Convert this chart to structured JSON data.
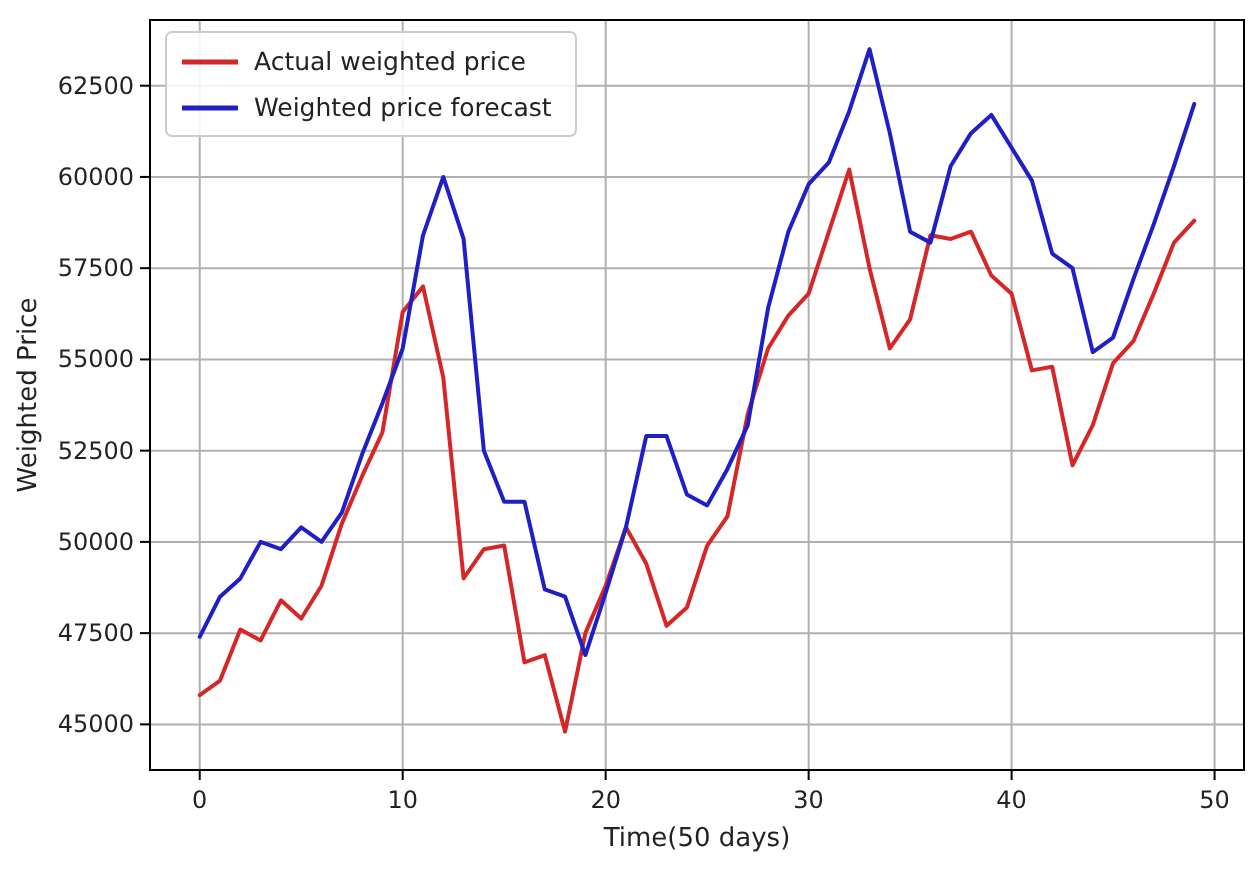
{
  "chart_data": {
    "type": "line",
    "xlabel": "Time(50 days)",
    "ylabel": "Weighted Price",
    "x": [
      0,
      1,
      2,
      3,
      4,
      5,
      6,
      7,
      8,
      9,
      10,
      11,
      12,
      13,
      14,
      15,
      16,
      17,
      18,
      19,
      20,
      21,
      22,
      23,
      24,
      25,
      26,
      27,
      28,
      29,
      30,
      31,
      32,
      33,
      34,
      35,
      36,
      37,
      38,
      39,
      40,
      41,
      42,
      43,
      44,
      45,
      46,
      47,
      48,
      49
    ],
    "series": [
      {
        "name": "Actual weighted price",
        "color": "#d62728",
        "values": [
          45800,
          46200,
          47600,
          47300,
          48400,
          47900,
          48800,
          50500,
          51800,
          53000,
          56300,
          57000,
          54500,
          49000,
          49800,
          49900,
          46700,
          46900,
          44800,
          47500,
          48800,
          50400,
          49400,
          47700,
          48200,
          49900,
          50700,
          53500,
          55300,
          56200,
          56800,
          58500,
          60200,
          57500,
          55300,
          56100,
          58400,
          58300,
          58500,
          57300,
          56800,
          54700,
          54800,
          52100,
          53200,
          54900,
          55500,
          56800,
          58200,
          58800
        ]
      },
      {
        "name": "Weighted price forecast",
        "color": "#1f1fc8",
        "values": [
          47400,
          48500,
          49000,
          50000,
          49800,
          50400,
          50000,
          50800,
          52400,
          53800,
          55300,
          58400,
          60000,
          58300,
          52500,
          51100,
          51100,
          48700,
          48500,
          46900,
          48600,
          50400,
          52900,
          52900,
          51300,
          51000,
          52000,
          53200,
          56400,
          58500,
          59800,
          60400,
          61800,
          63500,
          61200,
          58500,
          58200,
          60300,
          61200,
          61700,
          60800,
          59900,
          57900,
          57500,
          55200,
          55600,
          57200,
          58700,
          60300,
          62000
        ]
      }
    ],
    "xlim": [
      -2.45,
      51.45
    ],
    "xticks": [
      0,
      10,
      20,
      30,
      40,
      50
    ],
    "ylim": [
      43750,
      64300
    ],
    "yticks": [
      45000,
      47500,
      50000,
      52500,
      55000,
      57500,
      60000,
      62500
    ],
    "grid": true,
    "legend": "top left",
    "line_style": "solid",
    "marker": "none"
  }
}
